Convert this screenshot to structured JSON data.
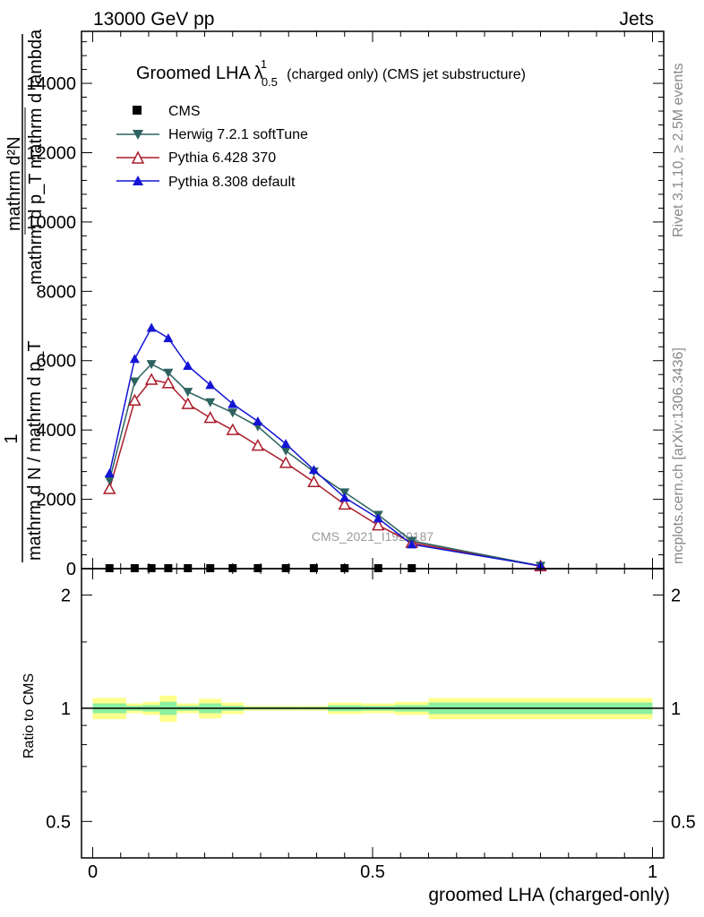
{
  "header": {
    "energy": "13000 GeV pp",
    "process": "Jets"
  },
  "side_labels": {
    "rivet": "Rivet 3.1.10, ≥ 2.5M events",
    "mcplots": "mcplots.cern.ch [arXiv:1306.3436]"
  },
  "watermark": "CMS_2021_I1920187",
  "colors": {
    "cms": "#000000",
    "herwig": "#2c6361",
    "pythia6": "#aa1c2a",
    "pythia8": "#1414d6",
    "band_outer": "#ffff8c",
    "band_inner": "#8cf0a0"
  },
  "chart_data": [
    {
      "type": "line",
      "title": {
        "prefix": "Groomed LHA",
        "lambda": "λ",
        "sup": "1",
        "sub": "0.5",
        "suffix": "(charged only) (CMS jet substructure)"
      },
      "ylabel": {
        "numerator": "mathrm d²N",
        "denominator": "mathrm d p_T mathrm d lambda",
        "lead": "1",
        "frac_num": "mathrm d N / mathrm d p_T"
      },
      "xlim": [
        -0.02,
        1.02
      ],
      "ylim": [
        0,
        15500
      ],
      "yticks": [
        0,
        2000,
        4000,
        6000,
        8000,
        10000,
        12000,
        14000
      ],
      "ytick_labels": [
        "0",
        "2000",
        "4000",
        "6000",
        "8000",
        "10000",
        "12000",
        "14000"
      ],
      "x": [
        0.03,
        0.075,
        0.105,
        0.135,
        0.17,
        0.21,
        0.25,
        0.295,
        0.345,
        0.395,
        0.45,
        0.51,
        0.57,
        0.8
      ],
      "series": [
        {
          "name": "CMS",
          "marker": "square",
          "values": [
            0,
            0,
            0,
            0,
            0,
            0,
            0,
            0,
            0,
            0,
            0,
            0,
            0,
            null
          ]
        },
        {
          "name": "Herwig 7.2.1 softTune",
          "marker": "triangle-down",
          "values": [
            2550,
            5400,
            5900,
            5650,
            5100,
            4800,
            4500,
            4100,
            3400,
            2800,
            2200,
            1550,
            800,
            80
          ]
        },
        {
          "name": "Pythia 6.428 370",
          "marker": "triangle-open",
          "values": [
            2300,
            4850,
            5450,
            5350,
            4750,
            4350,
            4000,
            3550,
            3050,
            2500,
            1850,
            1250,
            750,
            70
          ]
        },
        {
          "name": "Pythia 8.308 default",
          "marker": "triangle-up",
          "values": [
            2750,
            6050,
            6950,
            6650,
            5850,
            5300,
            4750,
            4250,
            3600,
            2850,
            2050,
            1450,
            700,
            80
          ]
        }
      ]
    },
    {
      "type": "area",
      "ylabel": "Ratio to CMS",
      "xlabel": "groomed LHA (charged-only)",
      "xlim": [
        -0.02,
        1.02
      ],
      "ylim": [
        0.4,
        2.35
      ],
      "log_y": true,
      "yticks": [
        0.5,
        1,
        2
      ],
      "ytick_labels": [
        "0.5",
        "1",
        "2"
      ],
      "xticks": [
        0,
        0.5,
        1
      ],
      "xtick_labels": [
        "0",
        "0.5",
        "1"
      ],
      "reference": 1,
      "bands": [
        {
          "x0": 0.0,
          "x1": 0.06,
          "outer": 0.065,
          "inner": 0.03
        },
        {
          "x0": 0.06,
          "x1": 0.09,
          "outer": 0.03,
          "inner": 0.015
        },
        {
          "x0": 0.09,
          "x1": 0.12,
          "outer": 0.04,
          "inner": 0.02
        },
        {
          "x0": 0.12,
          "x1": 0.15,
          "outer": 0.08,
          "inner": 0.04
        },
        {
          "x0": 0.15,
          "x1": 0.19,
          "outer": 0.03,
          "inner": 0.015
        },
        {
          "x0": 0.19,
          "x1": 0.23,
          "outer": 0.06,
          "inner": 0.03
        },
        {
          "x0": 0.23,
          "x1": 0.27,
          "outer": 0.035,
          "inner": 0.015
        },
        {
          "x0": 0.27,
          "x1": 0.32,
          "outer": 0.015,
          "inner": 0.008
        },
        {
          "x0": 0.32,
          "x1": 0.37,
          "outer": 0.015,
          "inner": 0.008
        },
        {
          "x0": 0.37,
          "x1": 0.42,
          "outer": 0.015,
          "inner": 0.008
        },
        {
          "x0": 0.42,
          "x1": 0.48,
          "outer": 0.035,
          "inner": 0.018
        },
        {
          "x0": 0.48,
          "x1": 0.54,
          "outer": 0.03,
          "inner": 0.015
        },
        {
          "x0": 0.54,
          "x1": 0.6,
          "outer": 0.04,
          "inner": 0.02
        },
        {
          "x0": 0.6,
          "x1": 1.0,
          "outer": 0.065,
          "inner": 0.035
        }
      ]
    }
  ]
}
